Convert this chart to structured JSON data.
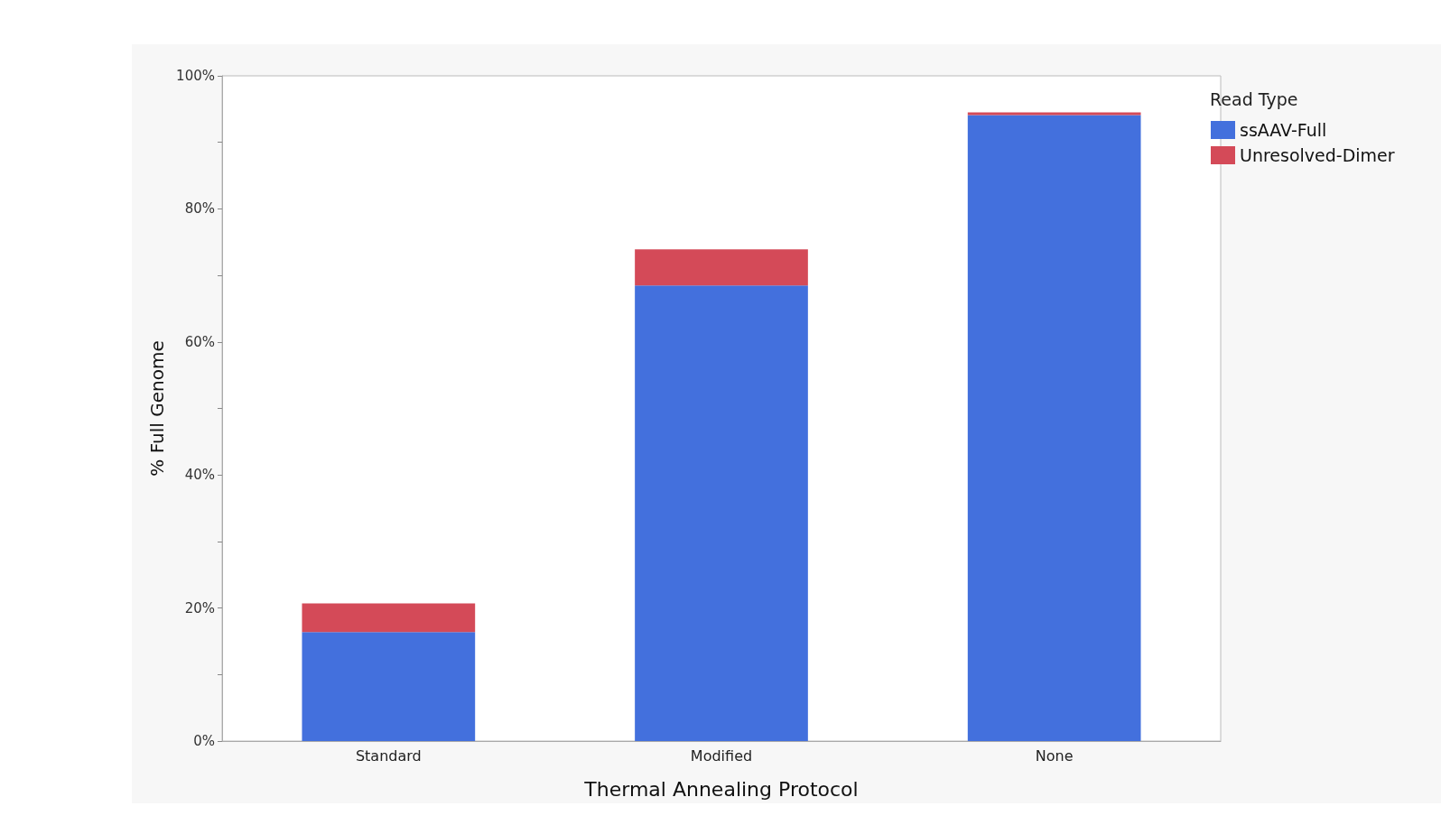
{
  "chart_data": {
    "type": "bar",
    "stacked": true,
    "xlabel": "Thermal Annealing Protocol",
    "ylabel": "% Full Genome",
    "legend_title": "Read Type",
    "legend": "top right",
    "categories": [
      "Standard",
      "Modified",
      "None"
    ],
    "series": [
      {
        "name": "ssAAV-Full",
        "color": "#4370dd",
        "values": [
          16.4,
          68.5,
          94.1
        ]
      },
      {
        "name": "Unresolved-Dimer",
        "color": "#d44a58",
        "values": [
          4.3,
          5.4,
          0.4
        ]
      }
    ],
    "ylim": [
      0,
      100
    ],
    "yticks": [
      {
        "value": 0,
        "label": "0%"
      },
      {
        "value": 10,
        "label": null
      },
      {
        "value": 20,
        "label": "20%"
      },
      {
        "value": 30,
        "label": null
      },
      {
        "value": 40,
        "label": "40%"
      },
      {
        "value": 50,
        "label": null
      },
      {
        "value": 60,
        "label": "60%"
      },
      {
        "value": 70,
        "label": null
      },
      {
        "value": 80,
        "label": "80%"
      },
      {
        "value": 90,
        "label": null
      },
      {
        "value": 100,
        "label": "100%"
      }
    ],
    "grid": false
  }
}
